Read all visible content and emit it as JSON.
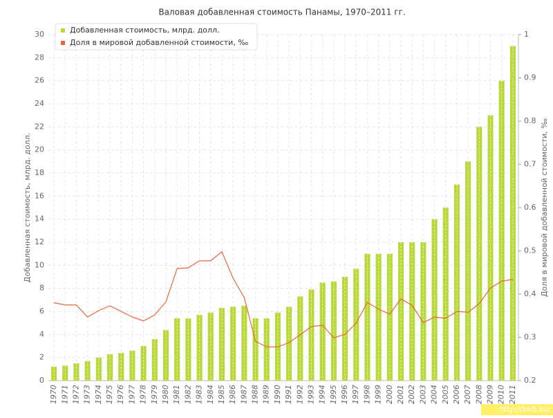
{
  "chart_data": {
    "type": "bar-line",
    "title": "Валовая добавленная стоимость Панамы, 1970–2011 гг.",
    "y_label": "Добавленная стоимость, млрд. долл.",
    "y2_label": "Доля в мировой добавленной стоимости, ‰",
    "categories": [
      "1970",
      "1971",
      "1972",
      "1973",
      "1974",
      "1975",
      "1976",
      "1977",
      "1978",
      "1979",
      "1980",
      "1981",
      "1982",
      "1983",
      "1984",
      "1985",
      "1986",
      "1987",
      "1988",
      "1989",
      "1990",
      "1991",
      "1992",
      "1993",
      "1994",
      "1995",
      "1996",
      "1997",
      "1998",
      "1999",
      "2000",
      "2001",
      "2002",
      "2003",
      "2004",
      "2005",
      "2006",
      "2007",
      "2008",
      "2009",
      "2010",
      "2011"
    ],
    "series": [
      {
        "name": "Добавленная стоимость, млрд. долл.",
        "type": "bar",
        "color": "#b8d83c",
        "values": [
          1.2,
          1.3,
          1.5,
          1.7,
          2.0,
          2.3,
          2.4,
          2.6,
          3.0,
          3.6,
          4.4,
          5.4,
          5.4,
          5.7,
          5.9,
          6.3,
          6.4,
          6.5,
          5.4,
          5.4,
          5.9,
          6.4,
          7.3,
          7.9,
          8.5,
          8.6,
          9.0,
          9.7,
          11.0,
          11.0,
          11.0,
          12.0,
          12.0,
          12.0,
          14.0,
          15.0,
          17.0,
          19.0,
          22.0,
          23.0,
          26.0,
          29.0
        ]
      },
      {
        "name": "Доля в мировой добавленной стоимости, ‰",
        "type": "line",
        "axis": "y2",
        "color": "#e8643a",
        "values": [
          0.38,
          0.375,
          0.375,
          0.347,
          0.362,
          0.373,
          0.36,
          0.347,
          0.338,
          0.352,
          0.382,
          0.459,
          0.461,
          0.477,
          0.477,
          0.498,
          0.437,
          0.392,
          0.291,
          0.278,
          0.278,
          0.288,
          0.306,
          0.325,
          0.328,
          0.299,
          0.307,
          0.333,
          0.381,
          0.365,
          0.354,
          0.389,
          0.374,
          0.334,
          0.347,
          0.344,
          0.36,
          0.358,
          0.378,
          0.414,
          0.43,
          0.434
        ]
      }
    ],
    "ylim": [
      0,
      30
    ],
    "yticks": [
      0,
      2,
      4,
      6,
      8,
      10,
      12,
      14,
      16,
      18,
      20,
      22,
      24,
      26,
      28,
      30
    ],
    "y2lim": [
      0.2,
      1
    ],
    "y2ticks": [
      0.2,
      0.3,
      0.4,
      0.5,
      0.6,
      0.7,
      0.8,
      0.9,
      1
    ],
    "grid": true,
    "legend": "top-left",
    "watermark": "http://be5.biz"
  }
}
